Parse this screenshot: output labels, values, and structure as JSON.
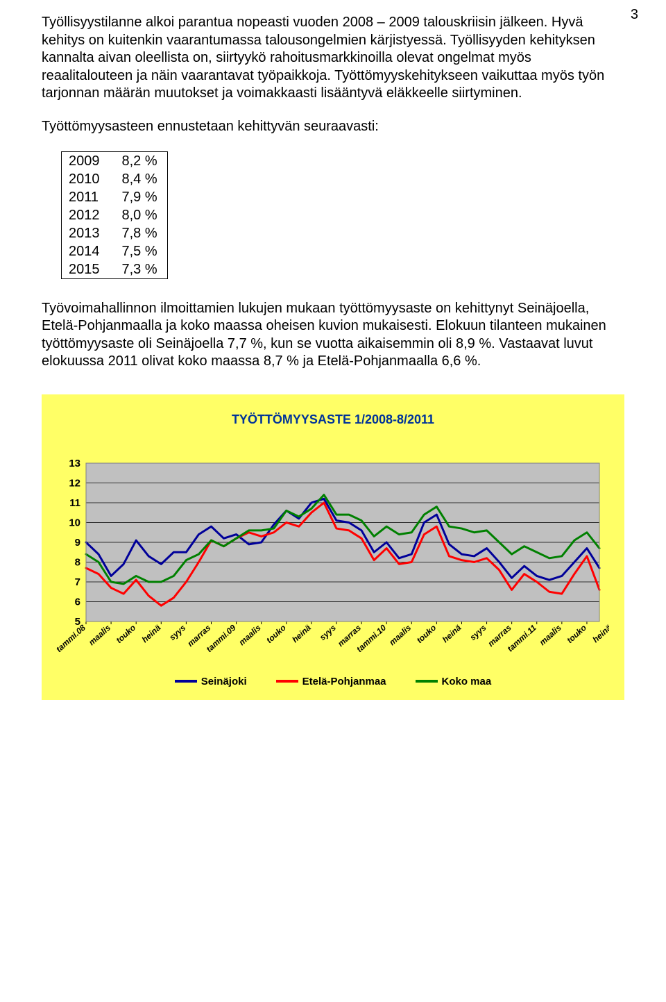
{
  "page_number": "3",
  "paragraphs": {
    "p1": "Työllisyystilanne alkoi parantua nopeasti vuoden 2008 – 2009 talouskriisin jälkeen. Hyvä kehitys on kuitenkin vaarantumassa talousongelmien kärjistyessä. Työllisyyden kehityksen kannalta aivan oleellista on, siirtyykö rahoitusmarkkinoilla olevat ongelmat myös reaalitalouteen ja näin vaarantavat työpaikkoja. Työttömyyskehitykseen vaikuttaa myös työn tarjonnan määrän muutokset ja voimakkaasti lisääntyvä eläkkeelle siirtyminen.",
    "p2": "Työttömyysasteen ennustetaan kehittyvän seuraavasti:",
    "p3": "Työvoimahallinnon ilmoittamien lukujen mukaan työttömyysaste on kehittynyt Seinäjoella, Etelä-Pohjanmaalla ja koko maassa oheisen kuvion mukaisesti. Elokuun tilanteen mukainen työttömyysaste oli Seinäjoella 7,7 %, kun se vuotta aikaisemmin oli 8,9 %. Vastaavat luvut elokuussa 2011 olivat koko maassa 8,7 % ja Etelä-Pohjanmaalla 6,6 %."
  },
  "forecast": {
    "rows": [
      {
        "year": "2009",
        "value": "8,2 %"
      },
      {
        "year": "2010",
        "value": "8,4 %"
      },
      {
        "year": "2011",
        "value": "7,9 %"
      },
      {
        "year": "2012",
        "value": "8,0 %"
      },
      {
        "year": "2013",
        "value": "7,8 %"
      },
      {
        "year": "2014",
        "value": "7,5 %"
      },
      {
        "year": "2015",
        "value": "7,3 %"
      }
    ]
  },
  "chart": {
    "type": "line",
    "title": "TYÖTTÖMYYSASTE 1/2008-8/2011",
    "title_color": "#003399",
    "title_fontsize": 18,
    "outer_background": "#ffff66",
    "plot_background": "#c0c0c0",
    "panel_border": "#808080",
    "gridline_color": "#000000",
    "axis_text_color": "#000000",
    "ylim": [
      5,
      13
    ],
    "ytick_step": 1,
    "yticks": [
      "5",
      "6",
      "7",
      "8",
      "9",
      "10",
      "11",
      "12",
      "13"
    ],
    "xticks": [
      "tammi.08",
      "maalis",
      "touko",
      "heinä",
      "syys",
      "marras",
      "tammi.09",
      "maalis",
      "touko",
      "heinä",
      "syys",
      "marras",
      "tammi.10",
      "maalis",
      "touko",
      "heinä",
      "syys",
      "marras",
      "tammi.11",
      "maalis",
      "touko",
      "heinä"
    ],
    "line_width": 3,
    "series": [
      {
        "name": "Seinäjoki",
        "color": "#000099",
        "values": [
          9.0,
          8.4,
          7.3,
          7.9,
          9.1,
          8.3,
          7.9,
          8.5,
          8.5,
          9.4,
          9.8,
          9.2,
          9.4,
          8.9,
          9.0,
          9.9,
          10.6,
          10.2,
          11.0,
          11.2,
          10.1,
          10.0,
          9.6,
          8.5,
          9.0,
          8.2,
          8.4,
          10.0,
          10.4,
          8.9,
          8.4,
          8.3,
          8.7,
          8.0,
          7.2,
          7.8,
          7.3,
          7.1,
          7.3,
          8.0,
          8.7,
          7.7
        ]
      },
      {
        "name": "Etelä-Pohjanmaa",
        "color": "#ff0000",
        "values": [
          7.7,
          7.4,
          6.7,
          6.4,
          7.1,
          6.3,
          5.8,
          6.2,
          7.0,
          8.0,
          9.1,
          8.8,
          9.2,
          9.5,
          9.3,
          9.5,
          10.0,
          9.8,
          10.5,
          11.0,
          9.7,
          9.6,
          9.2,
          8.1,
          8.7,
          7.9,
          8.0,
          9.4,
          9.8,
          8.3,
          8.1,
          8.0,
          8.2,
          7.6,
          6.6,
          7.4,
          7.0,
          6.5,
          6.4,
          7.4,
          8.3,
          6.6
        ]
      },
      {
        "name": "Koko maa",
        "color": "#008000",
        "values": [
          8.4,
          8.0,
          7.0,
          6.9,
          7.3,
          7.0,
          7.0,
          7.3,
          8.1,
          8.4,
          9.1,
          8.8,
          9.2,
          9.6,
          9.6,
          9.7,
          10.6,
          10.3,
          10.7,
          11.4,
          10.4,
          10.4,
          10.1,
          9.3,
          9.8,
          9.4,
          9.5,
          10.4,
          10.8,
          9.8,
          9.7,
          9.5,
          9.6,
          9.0,
          8.4,
          8.8,
          8.5,
          8.2,
          8.3,
          9.1,
          9.5,
          8.7
        ]
      }
    ],
    "legend_font_size": 15
  }
}
